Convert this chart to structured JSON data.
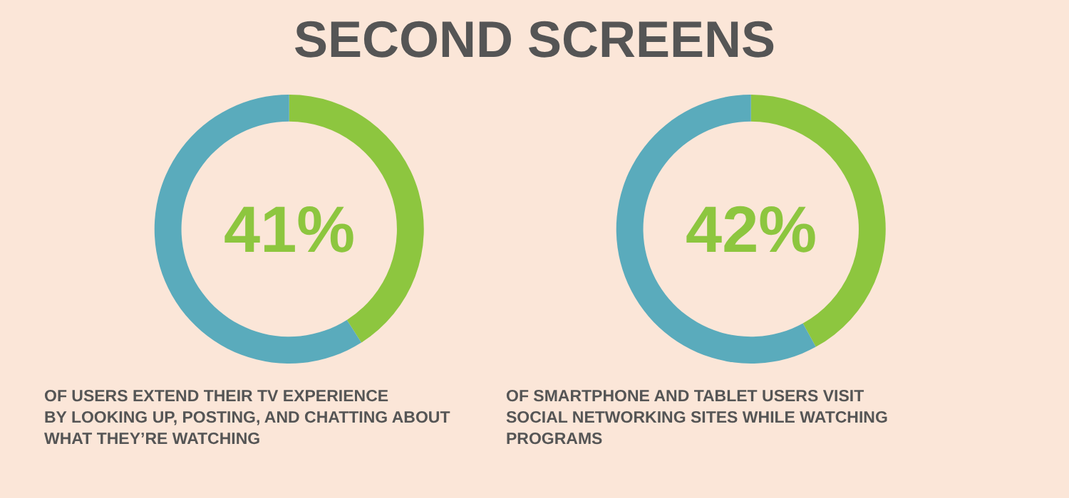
{
  "chart_data": [
    {
      "type": "donut",
      "title": "SECOND SCREENS",
      "categories": [
        null,
        null
      ],
      "values": [
        41,
        59
      ],
      "colors": [
        "#8dc63f",
        "#5aabbc"
      ],
      "value_labels": [
        "41%",
        null
      ],
      "annotations": [
        "OF USERS EXTEND THEIR TV EXPERIENCE\nBY LOOKING UP, POSTING, AND CHATTING ABOUT\nWHAT THEY’RE WATCHING"
      ]
    },
    {
      "type": "donut",
      "categories": [
        null,
        null
      ],
      "values": [
        42,
        58
      ],
      "colors": [
        "#8dc63f",
        "#5aabbc"
      ],
      "value_labels": [
        "42%",
        null
      ],
      "annotations": [
        "OF SMARTPHONE AND TABLET USERS VISIT\nSOCIAL NETWORKING SITES WHILE WATCHING\nPROGRAMS"
      ]
    }
  ]
}
